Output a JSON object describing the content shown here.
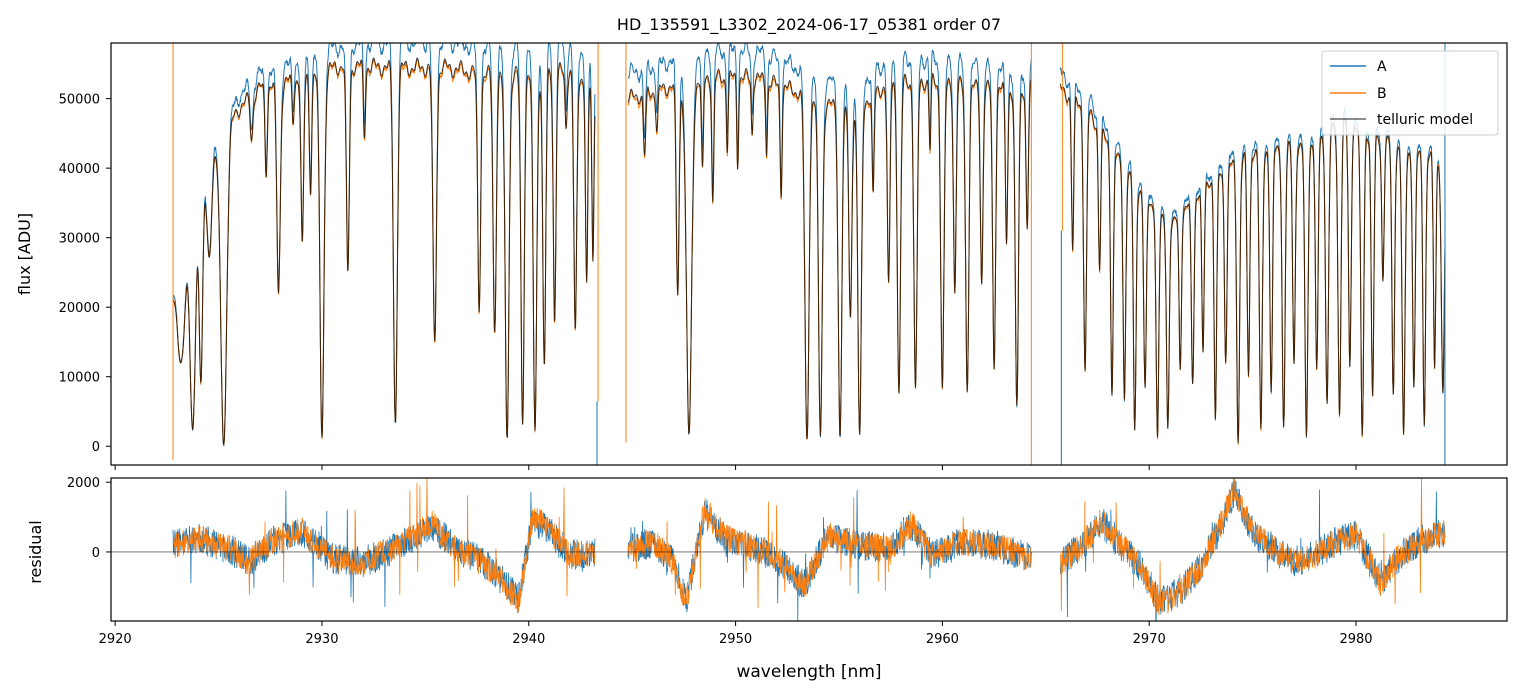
{
  "colors": {
    "A": "#1f77b4",
    "B": "#ff7f0e",
    "model": "#000000",
    "frame": "#000000"
  },
  "chart_data": [
    {
      "type": "line",
      "title": "HD_135591_L3302_2024-06-17_05381  order 07",
      "xlabel": "",
      "ylabel": "flux [ADU]",
      "xlim": [
        2919.8,
        2987.3
      ],
      "ylim": [
        -2700,
        58000
      ],
      "y_ticks": [
        0,
        10000,
        20000,
        30000,
        40000,
        50000
      ],
      "y_tick_labels": [
        "0",
        "10000",
        "20000",
        "30000",
        "40000",
        "50000"
      ],
      "x_ticks": [
        2920,
        2930,
        2940,
        2950,
        2960,
        2970,
        2980
      ],
      "legend": {
        "placement": "top-right",
        "entries": [
          "A",
          "B",
          "telluric model"
        ]
      },
      "grid": false,
      "segments": [
        {
          "x": [
            2922.8,
            2943.2
          ]
        },
        {
          "x": [
            2944.8,
            2964.3
          ]
        },
        {
          "x": [
            2965.7,
            2984.3
          ]
        }
      ],
      "continuum_model": [
        [
          2922.8,
          22000
        ],
        [
          2924.5,
          40000
        ],
        [
          2925.8,
          48000
        ],
        [
          2927.0,
          51500
        ],
        [
          2929.0,
          53000
        ],
        [
          2931.0,
          54800
        ],
        [
          2933.5,
          54500
        ],
        [
          2936.0,
          54500
        ],
        [
          2938.0,
          53500
        ],
        [
          2940.0,
          53500
        ],
        [
          2942.0,
          54000
        ],
        [
          2943.2,
          52000
        ],
        [
          2944.8,
          50000
        ],
        [
          2946.5,
          51500
        ],
        [
          2948.5,
          53000
        ],
        [
          2951.0,
          53000
        ],
        [
          2953.5,
          50500
        ],
        [
          2955.5,
          48000
        ],
        [
          2957.5,
          52500
        ],
        [
          2959.5,
          52500
        ],
        [
          2962.0,
          51500
        ],
        [
          2964.3,
          51500
        ],
        [
          2965.7,
          51500
        ],
        [
          2967.0,
          48500
        ],
        [
          2969.0,
          39000
        ],
        [
          2971.0,
          31500
        ],
        [
          2973.0,
          38500
        ],
        [
          2975.0,
          42500
        ],
        [
          2977.5,
          43000
        ],
        [
          2979.5,
          46500
        ],
        [
          2982.0,
          43000
        ],
        [
          2984.3,
          41000
        ]
      ],
      "a_over_b_ratio": [
        [
          2925,
          1.03
        ],
        [
          2935,
          1.07
        ],
        [
          2950,
          1.07
        ],
        [
          2960,
          1.06
        ],
        [
          2970,
          1.03
        ],
        [
          2984,
          1.02
        ]
      ],
      "absorption_lines": [
        [
          2923.2,
          14000,
          0.25
        ],
        [
          2923.75,
          30000,
          0.18
        ],
        [
          2924.15,
          27000,
          0.12
        ],
        [
          2924.55,
          13000,
          0.15
        ],
        [
          2925.25,
          48000,
          0.2
        ],
        [
          2926.6,
          6000,
          0.09
        ],
        [
          2927.3,
          12000,
          0.08
        ],
        [
          2927.9,
          30000,
          0.12
        ],
        [
          2928.6,
          6000,
          0.07
        ],
        [
          2929.05,
          25000,
          0.09
        ],
        [
          2929.45,
          16000,
          0.08
        ],
        [
          2930.0,
          52000,
          0.14
        ],
        [
          2931.25,
          30000,
          0.1
        ],
        [
          2932.05,
          10000,
          0.07
        ],
        [
          2933.55,
          51000,
          0.13
        ],
        [
          2935.45,
          40000,
          0.12
        ],
        [
          2937.6,
          34000,
          0.1
        ],
        [
          2938.35,
          37000,
          0.11
        ],
        [
          2938.95,
          52000,
          0.13
        ],
        [
          2939.7,
          50000,
          0.11
        ],
        [
          2940.3,
          51000,
          0.12
        ],
        [
          2940.75,
          43000,
          0.1
        ],
        [
          2941.25,
          36000,
          0.09
        ],
        [
          2941.8,
          8000,
          0.07
        ],
        [
          2942.25,
          38000,
          0.1
        ],
        [
          2942.8,
          30000,
          0.08
        ],
        [
          2943.1,
          26000,
          0.07
        ],
        [
          2945.6,
          9000,
          0.08
        ],
        [
          2946.2,
          6000,
          0.07
        ],
        [
          2947.2,
          30000,
          0.1
        ],
        [
          2947.75,
          51000,
          0.18
        ],
        [
          2948.4,
          14000,
          0.07
        ],
        [
          2948.9,
          18000,
          0.07
        ],
        [
          2949.6,
          10000,
          0.06
        ],
        [
          2950.1,
          12000,
          0.06
        ],
        [
          2950.8,
          8000,
          0.06
        ],
        [
          2951.5,
          10000,
          0.06
        ],
        [
          2952.2,
          15000,
          0.07
        ],
        [
          2953.45,
          50000,
          0.14
        ],
        [
          2954.1,
          48000,
          0.13
        ],
        [
          2955.05,
          47000,
          0.12
        ],
        [
          2955.55,
          30000,
          0.1
        ],
        [
          2956.0,
          48000,
          0.12
        ],
        [
          2956.65,
          15000,
          0.07
        ],
        [
          2957.4,
          30000,
          0.09
        ],
        [
          2957.9,
          45000,
          0.11
        ],
        [
          2958.7,
          45000,
          0.11
        ],
        [
          2959.4,
          10000,
          0.06
        ],
        [
          2960.0,
          44000,
          0.11
        ],
        [
          2960.6,
          30000,
          0.09
        ],
        [
          2961.2,
          43000,
          0.11
        ],
        [
          2961.9,
          28000,
          0.09
        ],
        [
          2962.5,
          40000,
          0.1
        ],
        [
          2963.1,
          22000,
          0.08
        ],
        [
          2963.6,
          46000,
          0.11
        ],
        [
          2964.1,
          20000,
          0.08
        ],
        [
          2966.3,
          22000,
          0.08
        ],
        [
          2966.9,
          38000,
          0.1
        ],
        [
          2967.6,
          20000,
          0.08
        ],
        [
          2968.2,
          35000,
          0.09
        ],
        [
          2968.8,
          33000,
          0.09
        ],
        [
          2969.3,
          36000,
          0.09
        ],
        [
          2969.8,
          28000,
          0.09
        ],
        [
          2970.4,
          33000,
          0.09
        ],
        [
          2970.9,
          29000,
          0.09
        ],
        [
          2971.5,
          22000,
          0.08
        ],
        [
          2972.1,
          26000,
          0.09
        ],
        [
          2972.6,
          24000,
          0.08
        ],
        [
          2973.2,
          35000,
          0.09
        ],
        [
          2973.7,
          27000,
          0.09
        ],
        [
          2974.3,
          40000,
          0.1
        ],
        [
          2974.8,
          32000,
          0.09
        ],
        [
          2975.4,
          41000,
          0.1
        ],
        [
          2975.9,
          35000,
          0.09
        ],
        [
          2976.5,
          40000,
          0.1
        ],
        [
          2977.0,
          31000,
          0.09
        ],
        [
          2977.6,
          42000,
          0.1
        ],
        [
          2978.1,
          34000,
          0.09
        ],
        [
          2978.6,
          39000,
          0.1
        ],
        [
          2979.2,
          41000,
          0.1
        ],
        [
          2979.7,
          35000,
          0.09
        ],
        [
          2980.3,
          44000,
          0.1
        ],
        [
          2980.8,
          38000,
          0.09
        ],
        [
          2981.3,
          20000,
          0.08
        ],
        [
          2981.8,
          36000,
          0.09
        ],
        [
          2982.3,
          42000,
          0.1
        ],
        [
          2982.8,
          34000,
          0.09
        ],
        [
          2983.3,
          38000,
          0.09
        ],
        [
          2983.8,
          30000,
          0.08
        ],
        [
          2984.2,
          34000,
          0.1
        ]
      ],
      "spikes": [
        {
          "x": 2922.8,
          "series": "B",
          "y": [
            -2000,
            58000
          ]
        },
        {
          "x": 2943.3,
          "series": "A",
          "y": [
            -2700,
            6500
          ]
        },
        {
          "x": 2943.35,
          "series": "B",
          "y": [
            6500,
            58000
          ]
        },
        {
          "x": 2944.7,
          "series": "B",
          "y": [
            500,
            58000
          ]
        },
        {
          "x": 2964.3,
          "series": "B",
          "y": [
            -2700,
            58000
          ]
        },
        {
          "x": 2965.75,
          "series": "A",
          "y": [
            -2700,
            31000
          ]
        },
        {
          "x": 2965.8,
          "series": "B",
          "y": [
            31000,
            58000
          ]
        },
        {
          "x": 2984.3,
          "series": "A",
          "y": [
            -2700,
            58000
          ]
        }
      ]
    },
    {
      "type": "line",
      "title": "",
      "xlabel": "wavelength [nm]",
      "ylabel": "residual",
      "xlim": [
        2919.8,
        2987.3
      ],
      "ylim": [
        -1980,
        2120
      ],
      "y_ticks": [
        0,
        2000
      ],
      "y_tick_labels": [
        "0",
        "2000"
      ],
      "x_ticks": [
        2920,
        2930,
        2940,
        2950,
        2960,
        2970,
        2980
      ],
      "x_tick_labels": [
        "2920",
        "2930",
        "2940",
        "2950",
        "2960",
        "2970",
        "2980"
      ],
      "zero_line": 0,
      "grid": false,
      "residual_trend": [
        [
          2922.8,
          200
        ],
        [
          2924.0,
          400
        ],
        [
          2925.5,
          100
        ],
        [
          2926.5,
          -300
        ],
        [
          2927.5,
          300
        ],
        [
          2929.0,
          600
        ],
        [
          2930.5,
          -200
        ],
        [
          2932.0,
          -300
        ],
        [
          2933.5,
          100
        ],
        [
          2935.3,
          800
        ],
        [
          2936.5,
          100
        ],
        [
          2937.5,
          -200
        ],
        [
          2938.5,
          -700
        ],
        [
          2939.5,
          -1400
        ],
        [
          2940.2,
          1000
        ],
        [
          2941.0,
          600
        ],
        [
          2942.0,
          -100
        ],
        [
          2943.2,
          0
        ],
        [
          2944.8,
          100
        ],
        [
          2946.0,
          300
        ],
        [
          2947.0,
          -300
        ],
        [
          2947.6,
          -1500
        ],
        [
          2948.5,
          1200
        ],
        [
          2949.5,
          400
        ],
        [
          2951.0,
          100
        ],
        [
          2952.0,
          -200
        ],
        [
          2953.3,
          -1000
        ],
        [
          2954.5,
          500
        ],
        [
          2956.0,
          200
        ],
        [
          2957.5,
          100
        ],
        [
          2958.5,
          800
        ],
        [
          2959.5,
          -100
        ],
        [
          2961.0,
          300
        ],
        [
          2962.5,
          200
        ],
        [
          2964.3,
          -200
        ],
        [
          2965.7,
          -300
        ],
        [
          2966.8,
          200
        ],
        [
          2967.7,
          900
        ],
        [
          2968.5,
          300
        ],
        [
          2969.5,
          -400
        ],
        [
          2970.5,
          -1500
        ],
        [
          2971.5,
          -1200
        ],
        [
          2972.5,
          -400
        ],
        [
          2973.4,
          700
        ],
        [
          2974.1,
          1800
        ],
        [
          2975.0,
          600
        ],
        [
          2976.0,
          100
        ],
        [
          2977.0,
          -300
        ],
        [
          2978.0,
          -100
        ],
        [
          2979.0,
          300
        ],
        [
          2980.0,
          500
        ],
        [
          2981.2,
          -900
        ],
        [
          2982.0,
          -200
        ],
        [
          2983.0,
          300
        ],
        [
          2984.3,
          600
        ]
      ]
    }
  ]
}
